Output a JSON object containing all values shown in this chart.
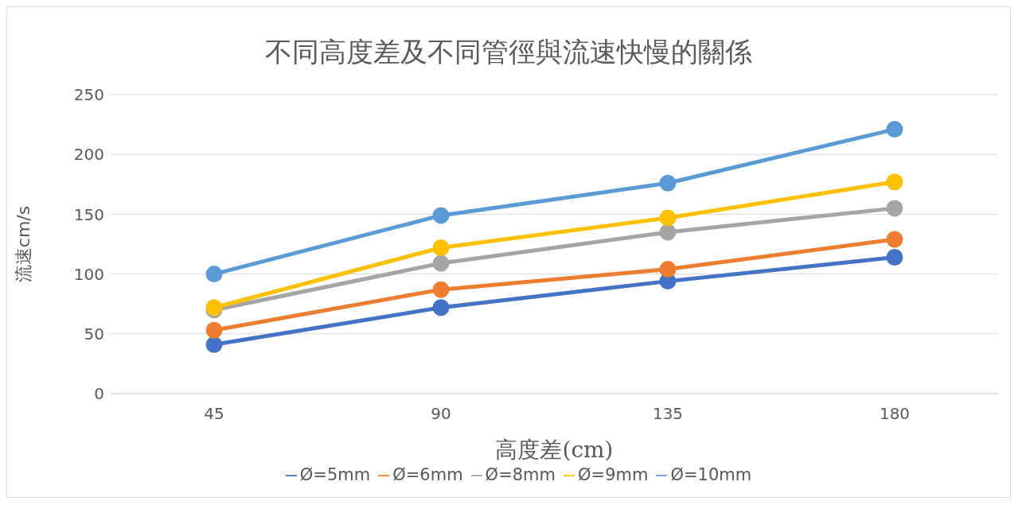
{
  "chart_data": {
    "type": "line",
    "title": "不同高度差及不同管徑與流速快慢的關係",
    "xlabel": "高度差(cm)",
    "ylabel": "流速cm/s",
    "categories": [
      "45",
      "90",
      "135",
      "180"
    ],
    "series": [
      {
        "name": "Ø=5mm",
        "color": "#4472c4",
        "values": [
          41,
          72,
          94,
          114
        ]
      },
      {
        "name": "Ø=6mm",
        "color": "#ed7d31",
        "values": [
          53,
          87,
          104,
          129
        ]
      },
      {
        "name": "Ø=8mm",
        "color": "#a5a5a5",
        "values": [
          70,
          109,
          135,
          155
        ]
      },
      {
        "name": "Ø=9mm",
        "color": "#ffc000",
        "values": [
          72,
          122,
          147,
          177
        ]
      },
      {
        "name": "Ø=10mm",
        "color": "#5b9bd5",
        "values": [
          100,
          149,
          176,
          221
        ]
      }
    ],
    "ylim": [
      0,
      250
    ],
    "yticks": [
      0,
      50,
      100,
      150,
      200,
      250
    ],
    "grid": "y",
    "legend": "bottom",
    "marker": "circle",
    "line_style": "solid"
  }
}
